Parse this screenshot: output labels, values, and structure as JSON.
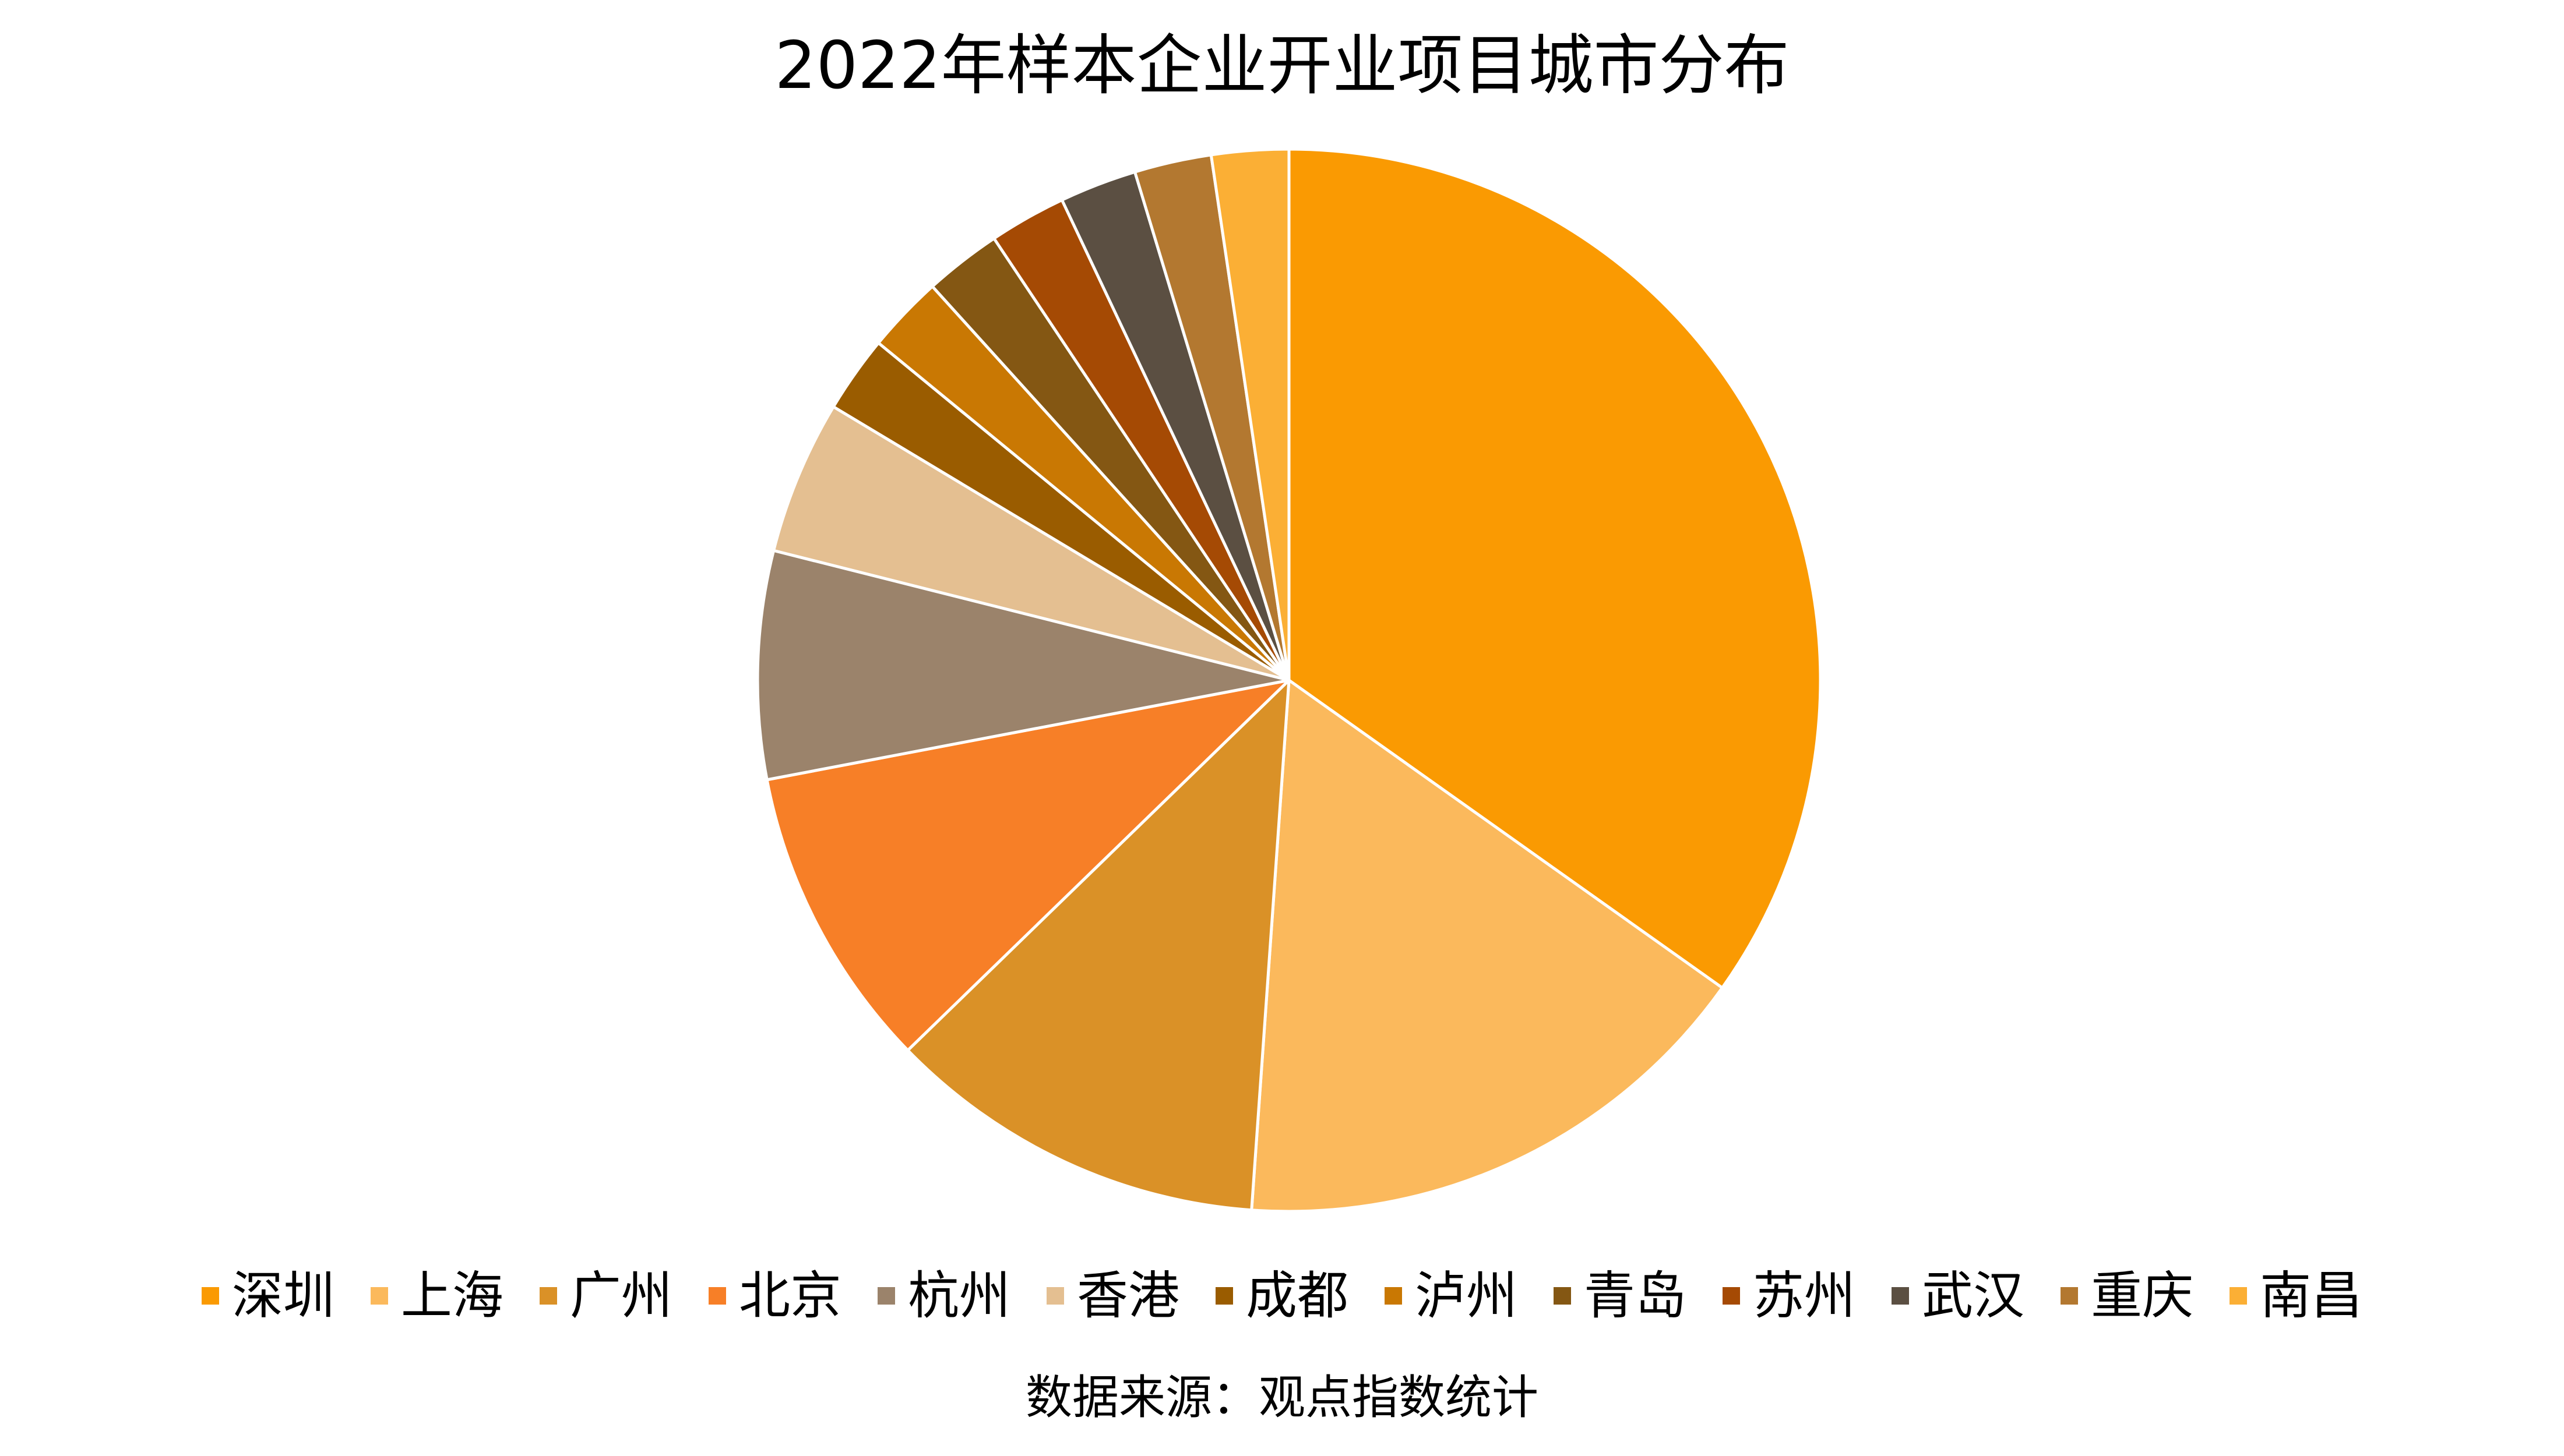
{
  "chart_data": {
    "type": "pie",
    "title": "2022年样本企业开业项目城市分布",
    "source": "数据来源：观点指数统计",
    "legend_position": "bottom",
    "start_angle": "12 o'clock",
    "direction": "clockwise",
    "slice_border_color": "#ffffff",
    "slices": [
      {
        "label": "深圳",
        "value": 35.7,
        "color": "#FA9A02"
      },
      {
        "label": "上海",
        "value": 16.7,
        "color": "#FBB95C"
      },
      {
        "label": "广州",
        "value": 11.9,
        "color": "#DA9127"
      },
      {
        "label": "北京",
        "value": 9.5,
        "color": "#F77F27"
      },
      {
        "label": "杭州",
        "value": 7.1,
        "color": "#9B836B"
      },
      {
        "label": "香港",
        "value": 4.8,
        "color": "#E4BF91"
      },
      {
        "label": "成都",
        "value": 2.4,
        "color": "#9A5C00"
      },
      {
        "label": "泸州",
        "value": 2.4,
        "color": "#C97803"
      },
      {
        "label": "青岛",
        "value": 2.4,
        "color": "#845713"
      },
      {
        "label": "苏州",
        "value": 2.4,
        "color": "#A54A04"
      },
      {
        "label": "武汉",
        "value": 2.4,
        "color": "#5B4F42"
      },
      {
        "label": "重庆",
        "value": 2.4,
        "color": "#B37830"
      },
      {
        "label": "南昌",
        "value": 2.4,
        "color": "#FBAF35"
      }
    ]
  }
}
